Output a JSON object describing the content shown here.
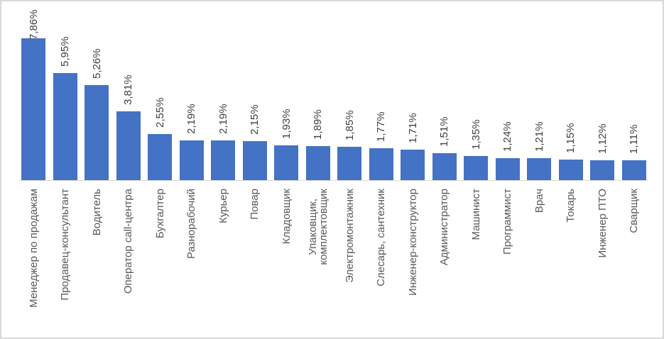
{
  "chart_data": {
    "type": "bar",
    "title": "",
    "xlabel": "",
    "ylabel": "",
    "categories": [
      "Менеджер по продажам",
      "Продавец-консультант",
      "Водитель",
      "Оператор call-центра",
      "Бухгалтер",
      "Разнорабочий",
      "Курьер",
      "Повар",
      "Кладовщик",
      "Упаковщик,\nкомплектовщик",
      "Электромонтажник",
      "Слесарь, сантехник",
      "Инженер-конструктор",
      "Администратор",
      "Машинист",
      "Программист",
      "Врач",
      "Токарь",
      "Инженер ПТО",
      "Сварщик"
    ],
    "values": [
      7.86,
      5.95,
      5.26,
      3.81,
      2.55,
      2.19,
      2.19,
      2.15,
      1.93,
      1.89,
      1.85,
      1.77,
      1.71,
      1.51,
      1.35,
      1.24,
      1.21,
      1.15,
      1.12,
      1.11
    ],
    "display_labels": [
      "7,86%",
      "5,95%",
      "5,26%",
      "3,81%",
      "2,55%",
      "2,19%",
      "2,19%",
      "2,15%",
      "1,93%",
      "1,89%",
      "1,85%",
      "1,77%",
      "1,71%",
      "1,51%",
      "1,35%",
      "1,24%",
      "1,21%",
      "1,15%",
      "1,12%",
      "1,11%"
    ],
    "decimal_separator": ",",
    "unit": "%",
    "label_rotation_deg": 90,
    "grid": false,
    "legend": false,
    "y_axis_visible": false,
    "x_axis_line": true,
    "colors": {
      "bar": "#4472C4",
      "value_label": "#404040",
      "category_label": "#595959",
      "axis_line": "#d9d9d9",
      "frame_border": "#d9d9d9",
      "background": "#ffffff"
    }
  }
}
